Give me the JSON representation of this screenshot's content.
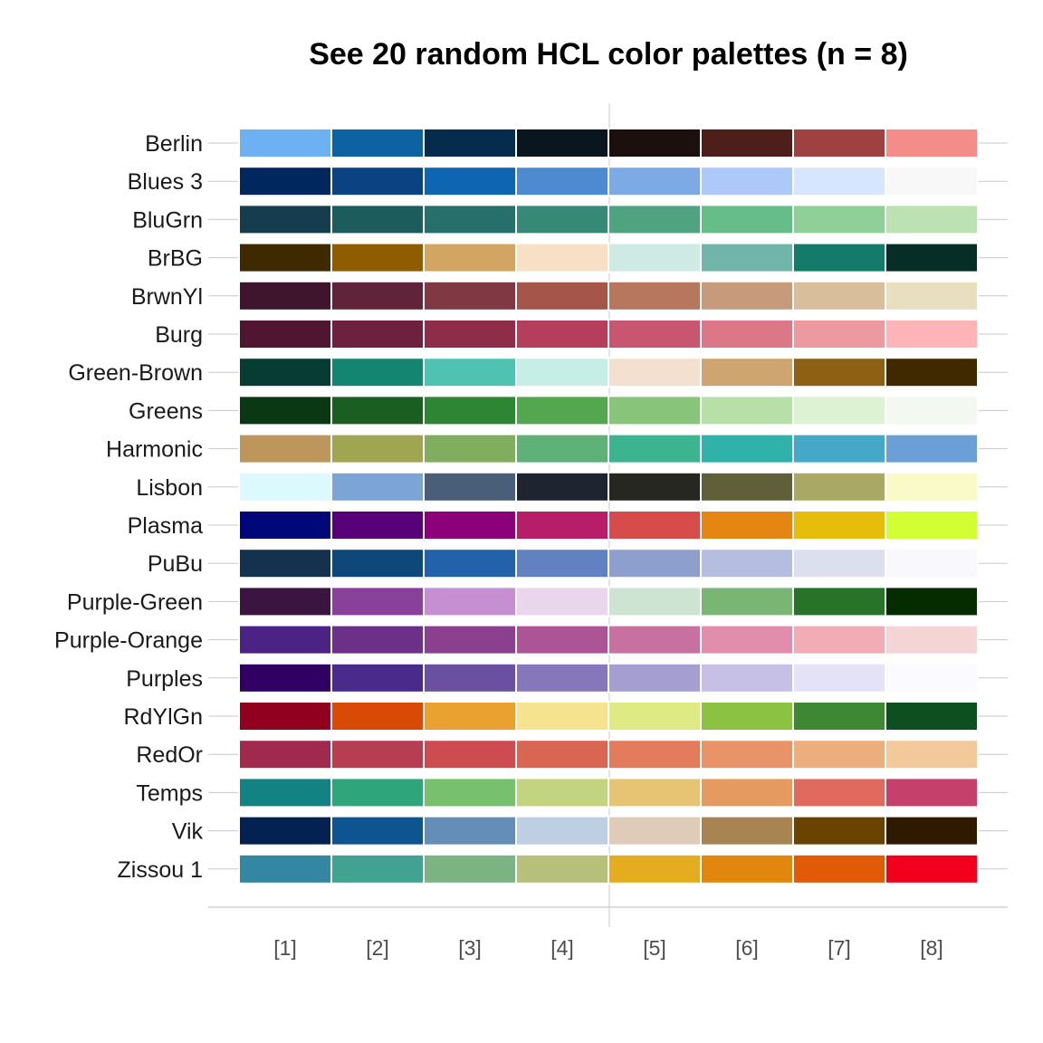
{
  "chart_data": {
    "type": "heatmap",
    "title": "See 20 random HCL color palettes (n = 8)",
    "xlabel": "",
    "ylabel": "",
    "x_ticks": [
      "[1]",
      "[2]",
      "[3]",
      "[4]",
      "[5]",
      "[6]",
      "[7]",
      "[8]"
    ],
    "grid": true,
    "palettes": [
      {
        "name": "Berlin",
        "colors": [
          "#6EB1F3",
          "#0C62A3",
          "#052C4D",
          "#09151F",
          "#1C100E",
          "#4E1E1B",
          "#9E4140",
          "#F48C8A"
        ]
      },
      {
        "name": "Blues 3",
        "colors": [
          "#00285F",
          "#0A4282",
          "#0E65B1",
          "#4E8ACF",
          "#7DA9E4",
          "#ACC9F9",
          "#D6E6FF",
          "#F8F8F8"
        ]
      },
      {
        "name": "BluGrn",
        "colors": [
          "#163D4D",
          "#1C5C5D",
          "#266F6B",
          "#378977",
          "#4FA380",
          "#67BD88",
          "#91CF98",
          "#BCE2B4"
        ]
      },
      {
        "name": "BrBG",
        "colors": [
          "#3E2900",
          "#8F5C00",
          "#D3A563",
          "#F7E0C5",
          "#CFEAE4",
          "#71B4A9",
          "#147A69",
          "#062E27"
        ]
      },
      {
        "name": "BrwnYl",
        "colors": [
          "#3F142D",
          "#60233A",
          "#803843",
          "#A5554A",
          "#B7765E",
          "#C69A7A",
          "#D9BE9C",
          "#E8DFC0"
        ]
      },
      {
        "name": "Burg",
        "colors": [
          "#501631",
          "#6E213E",
          "#8F2C4A",
          "#B63E5D",
          "#C95671",
          "#DB7786",
          "#EC99A0",
          "#FFB4B8"
        ]
      },
      {
        "name": "Green-Brown",
        "colors": [
          "#073C33",
          "#148571",
          "#4FC2B3",
          "#C6EEE6",
          "#F4E0CF",
          "#CEA570",
          "#8E6016",
          "#402900"
        ]
      },
      {
        "name": "Greens",
        "colors": [
          "#0A3813",
          "#1B5E22",
          "#2E8533",
          "#55A74F",
          "#89C47B",
          "#B7E0A9",
          "#DCF2D3",
          "#F3F8F0"
        ]
      },
      {
        "name": "Harmonic",
        "colors": [
          "#BD965C",
          "#A0A552",
          "#81AE5E",
          "#5FB277",
          "#3CB490",
          "#2EB2A9",
          "#46A8C7",
          "#6C9FD6"
        ]
      },
      {
        "name": "Lisbon",
        "colors": [
          "#DCFAFD",
          "#7CA5D6",
          "#485E79",
          "#1F2530",
          "#262720",
          "#5F603A",
          "#A9A865",
          "#FAFAC8"
        ]
      },
      {
        "name": "Plasma",
        "colors": [
          "#000779",
          "#580077",
          "#8C007A",
          "#B81D69",
          "#D74B4B",
          "#E68612",
          "#E5BD0A",
          "#D2FF33"
        ]
      },
      {
        "name": "PuBu",
        "colors": [
          "#14314D",
          "#0E4779",
          "#2262AB",
          "#6181C0",
          "#8E9FCE",
          "#B5BEDF",
          "#DBDFEE",
          "#F8F8FD"
        ]
      },
      {
        "name": "Purple-Green",
        "colors": [
          "#3A1540",
          "#88409B",
          "#C58FD1",
          "#E9D5EC",
          "#CEE4D2",
          "#7AB673",
          "#277428",
          "#052B00"
        ]
      },
      {
        "name": "Purple-Orange",
        "colors": [
          "#4A2384",
          "#6C3088",
          "#8B408F",
          "#AB5597",
          "#C8709F",
          "#E28DAB",
          "#F1ACB5",
          "#F4D4D4"
        ]
      },
      {
        "name": "Purples",
        "colors": [
          "#300063",
          "#4A2A8A",
          "#6950A0",
          "#8677BA",
          "#A59ED1",
          "#C6C0E6",
          "#E4E2F6",
          "#FAFAFF"
        ]
      },
      {
        "name": "RdYlGn",
        "colors": [
          "#91001F",
          "#DA4A07",
          "#E9A22F",
          "#F6E390",
          "#DEEB85",
          "#8BC242",
          "#3E8733",
          "#0D4F1E"
        ]
      },
      {
        "name": "RedOr",
        "colors": [
          "#A0294F",
          "#B73D50",
          "#CD4C50",
          "#D96652",
          "#E27C5C",
          "#E99468",
          "#EDAE7E",
          "#F1C99A"
        ]
      },
      {
        "name": "Temps",
        "colors": [
          "#138283",
          "#2EA57B",
          "#77C16E",
          "#C2D47F",
          "#E7C474",
          "#E59B5F",
          "#E06A5E",
          "#C5406B"
        ]
      },
      {
        "name": "Vik",
        "colors": [
          "#032251",
          "#0D5490",
          "#648EB8",
          "#BECFE3",
          "#DECCB8",
          "#A98453",
          "#6A4300",
          "#2F1A00"
        ]
      },
      {
        "name": "Zissou 1",
        "colors": [
          "#3387A2",
          "#42A291",
          "#7BB382",
          "#B6C07A",
          "#E3AD1F",
          "#E1870E",
          "#E25A08",
          "#F2001B"
        ]
      }
    ]
  }
}
